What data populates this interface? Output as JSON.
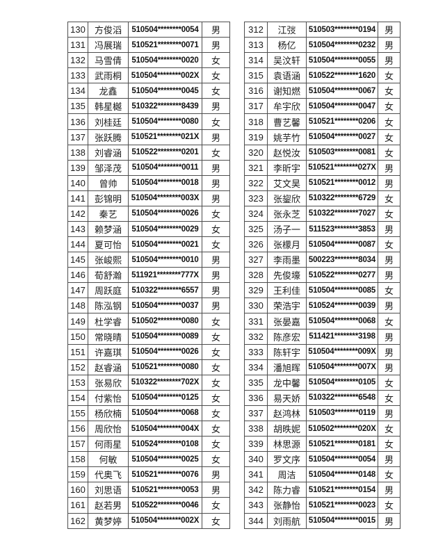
{
  "colors": {
    "text": "#1b1b1b",
    "border": "#4d4d4d",
    "background": "#ffffff"
  },
  "tables": [
    {
      "name": "roster-left",
      "rows": [
        [
          "130",
          "方俊滔",
          "510504********0054",
          "男"
        ],
        [
          "131",
          "冯展瑞",
          "510521********0071",
          "男"
        ],
        [
          "132",
          "马雪倩",
          "510504********0020",
          "女"
        ],
        [
          "133",
          "武雨桐",
          "510504********002X",
          "女"
        ],
        [
          "134",
          "龙鑫",
          "510504********0045",
          "女"
        ],
        [
          "135",
          "韩星樾",
          "510322********8439",
          "男"
        ],
        [
          "136",
          "刘桂廷",
          "510504********0080",
          "女"
        ],
        [
          "137",
          "张跃腾",
          "510521********021X",
          "男"
        ],
        [
          "138",
          "刘睿涵",
          "510522********0201",
          "女"
        ],
        [
          "139",
          "邹泽茂",
          "510504********0011",
          "男"
        ],
        [
          "140",
          "曾帅",
          "510504********0018",
          "男"
        ],
        [
          "141",
          "彭锦明",
          "510504********003X",
          "男"
        ],
        [
          "142",
          "秦艺",
          "510504********0026",
          "女"
        ],
        [
          "143",
          "赖梦涵",
          "510504********0029",
          "女"
        ],
        [
          "144",
          "夏可怡",
          "510504********0021",
          "女"
        ],
        [
          "145",
          "张峻熙",
          "510504********0010",
          "男"
        ],
        [
          "146",
          "荀舒瀚",
          "511921********777X",
          "男"
        ],
        [
          "147",
          "周跃庭",
          "510322********6557",
          "男"
        ],
        [
          "148",
          "陈泓钢",
          "510504********0037",
          "男"
        ],
        [
          "149",
          "杜学睿",
          "510502********0080",
          "女"
        ],
        [
          "150",
          "常晓晴",
          "510504********0089",
          "女"
        ],
        [
          "151",
          "许嘉琪",
          "510504********0026",
          "女"
        ],
        [
          "152",
          "赵睿涵",
          "510521********0080",
          "女"
        ],
        [
          "153",
          "张易欣",
          "510322********702X",
          "女"
        ],
        [
          "154",
          "付紫怡",
          "510504********0125",
          "女"
        ],
        [
          "155",
          "杨欣楠",
          "510504********0068",
          "女"
        ],
        [
          "156",
          "周欣怡",
          "510504********004X",
          "女"
        ],
        [
          "157",
          "何雨星",
          "510524********0108",
          "女"
        ],
        [
          "158",
          "何敏",
          "510504********0025",
          "女"
        ],
        [
          "159",
          "代奥飞",
          "510521********0076",
          "男"
        ],
        [
          "160",
          "刘思语",
          "510521********0053",
          "男"
        ],
        [
          "161",
          "赵若男",
          "510522********0046",
          "女"
        ],
        [
          "162",
          "黄梦婷",
          "510504********002X",
          "女"
        ]
      ]
    },
    {
      "name": "roster-right",
      "rows": [
        [
          "312",
          "江弢",
          "510503********0194",
          "男"
        ],
        [
          "313",
          "杨亿",
          "510504********0232",
          "男"
        ],
        [
          "314",
          "吴汶轩",
          "510504********0055",
          "男"
        ],
        [
          "315",
          "袁语涵",
          "510522********1620",
          "女"
        ],
        [
          "316",
          "谢知燃",
          "510504********0067",
          "女"
        ],
        [
          "317",
          "牟宇欣",
          "510504********0047",
          "女"
        ],
        [
          "318",
          "曹艺馨",
          "510521********0206",
          "女"
        ],
        [
          "319",
          "姚芋竹",
          "510504********0027",
          "女"
        ],
        [
          "320",
          "赵悦汝",
          "510503********0081",
          "女"
        ],
        [
          "321",
          "李昕宇",
          "510521********027X",
          "男"
        ],
        [
          "322",
          "艾文昊",
          "510521********0012",
          "男"
        ],
        [
          "323",
          "张鋆欣",
          "510322********6729",
          "女"
        ],
        [
          "324",
          "张永芝",
          "510322********7027",
          "女"
        ],
        [
          "325",
          "汤子一",
          "511523********3853",
          "男"
        ],
        [
          "326",
          "张檬月",
          "510504********0087",
          "女"
        ],
        [
          "327",
          "李雨墨",
          "500223********8034",
          "男"
        ],
        [
          "328",
          "先俊壕",
          "510522********0277",
          "男"
        ],
        [
          "329",
          "王利佳",
          "510504********0085",
          "女"
        ],
        [
          "330",
          "荣浩宇",
          "510524********0039",
          "男"
        ],
        [
          "331",
          "张晏嘉",
          "510504********0068",
          "女"
        ],
        [
          "332",
          "陈彦宏",
          "511421********3198",
          "男"
        ],
        [
          "333",
          "陈轩宇",
          "510504********009X",
          "男"
        ],
        [
          "334",
          "潘旭晖",
          "510504********007X",
          "男"
        ],
        [
          "335",
          "龙中馨",
          "510504********0105",
          "女"
        ],
        [
          "336",
          "易天娇",
          "510322********6548",
          "女"
        ],
        [
          "337",
          "赵鸿林",
          "510503********0119",
          "男"
        ],
        [
          "338",
          "胡昳妮",
          "510502********020X",
          "女"
        ],
        [
          "339",
          "林思源",
          "510521********0181",
          "女"
        ],
        [
          "340",
          "罗文序",
          "510504********0054",
          "男"
        ],
        [
          "341",
          "周洁",
          "510504********0148",
          "女"
        ],
        [
          "342",
          "陈力睿",
          "510521********0154",
          "男"
        ],
        [
          "343",
          "张静怡",
          "510521********0023",
          "女"
        ],
        [
          "344",
          "刘雨航",
          "510504********0015",
          "男"
        ]
      ]
    }
  ]
}
